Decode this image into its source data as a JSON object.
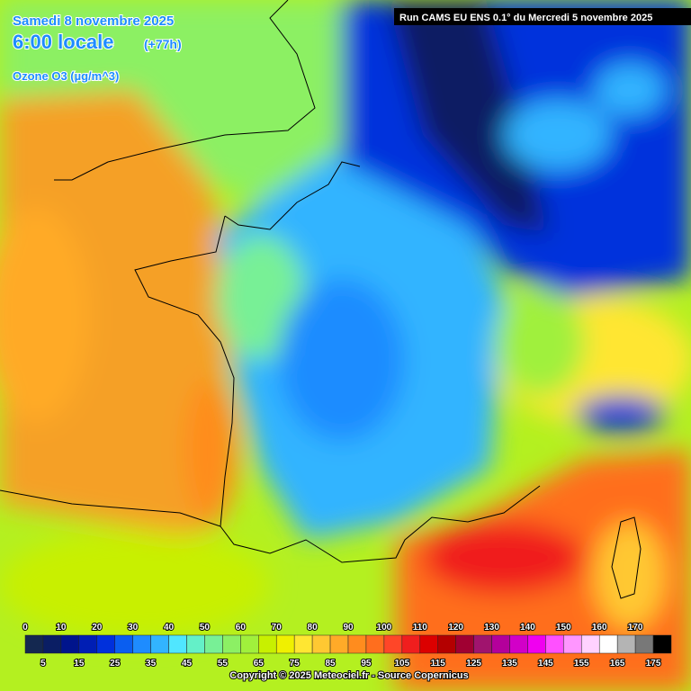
{
  "header": {
    "date": "Samedi 8 novembre 2025",
    "time": "6:00 locale",
    "lead": "(+77h)",
    "field": "Ozone O3 (µg/m^3)",
    "run": "Run CAMS EU ENS 0.1° du Mercredi 5 novembre 2025"
  },
  "legend": {
    "steps": [
      {
        "value": 0,
        "color": "#142850"
      },
      {
        "value": 5,
        "color": "#0a1e64"
      },
      {
        "value": 10,
        "color": "#00148c"
      },
      {
        "value": 15,
        "color": "#001eb4"
      },
      {
        "value": 20,
        "color": "#0030dc"
      },
      {
        "value": 25,
        "color": "#0a5ef0"
      },
      {
        "value": 30,
        "color": "#1e8cff"
      },
      {
        "value": 35,
        "color": "#32b4ff"
      },
      {
        "value": 40,
        "color": "#50e6ff"
      },
      {
        "value": 45,
        "color": "#64f0c8"
      },
      {
        "value": 50,
        "color": "#78f096"
      },
      {
        "value": 55,
        "color": "#8cf064"
      },
      {
        "value": 60,
        "color": "#a0f03c"
      },
      {
        "value": 65,
        "color": "#c8f000"
      },
      {
        "value": 70,
        "color": "#f0f000"
      },
      {
        "value": 75,
        "color": "#ffe632"
      },
      {
        "value": 80,
        "color": "#ffc832"
      },
      {
        "value": 85,
        "color": "#ffaa28"
      },
      {
        "value": 90,
        "color": "#ff8c1e"
      },
      {
        "value": 95,
        "color": "#ff6e1e"
      },
      {
        "value": 100,
        "color": "#ff4628"
      },
      {
        "value": 105,
        "color": "#f01e1e"
      },
      {
        "value": 110,
        "color": "#dc0000"
      },
      {
        "value": 115,
        "color": "#b40000"
      },
      {
        "value": 120,
        "color": "#a00032"
      },
      {
        "value": 125,
        "color": "#a0146e"
      },
      {
        "value": 130,
        "color": "#b4009b"
      },
      {
        "value": 135,
        "color": "#d200c8"
      },
      {
        "value": 140,
        "color": "#f000f0"
      },
      {
        "value": 145,
        "color": "#ff50ff"
      },
      {
        "value": 150,
        "color": "#ff96ff"
      },
      {
        "value": 155,
        "color": "#ffd2ff"
      },
      {
        "value": 160,
        "color": "#ffffff"
      },
      {
        "value": 165,
        "color": "#b4b4b4"
      },
      {
        "value": 170,
        "color": "#787878"
      },
      {
        "value": 175,
        "color": "#000000"
      }
    ]
  },
  "footer": {
    "copyright": "Copyright © 2025 Meteociel.fr - Source Copernicus"
  }
}
